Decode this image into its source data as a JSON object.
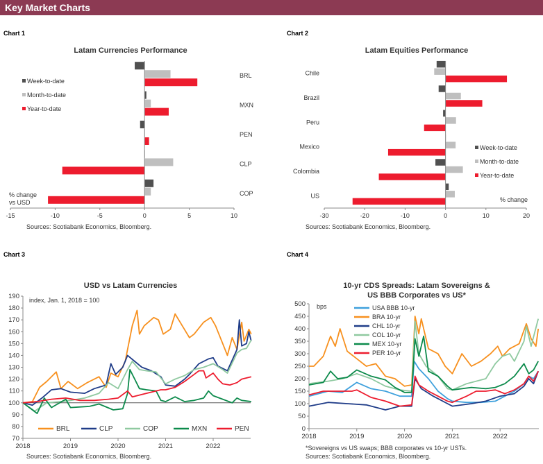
{
  "header": {
    "title": "Key Market Charts",
    "color": "#8c3a53"
  },
  "colors": {
    "wtd": "#505050",
    "mtd": "#bfbfbf",
    "ytd": "#ed1c2e",
    "BRL": "#f7901e",
    "CLP": "#1f3c88",
    "COP": "#8fc9a0",
    "MXN": "#0c8a4b",
    "PEN": "#ed1c2e",
    "USA": "#3ea0dc"
  },
  "chart_data": [
    {
      "label": "Chart 1",
      "type": "bar",
      "orientation": "horizontal",
      "title": "Latam Currencies Performance",
      "categories": [
        "BRL",
        "MXN",
        "PEN",
        "CLP",
        "COP"
      ],
      "series": [
        {
          "name": "Week-to-date",
          "values": [
            -1.1,
            0.2,
            -0.5,
            0,
            1.0
          ]
        },
        {
          "name": "Month-to-date",
          "values": [
            2.9,
            0.7,
            0.05,
            3.2,
            0.7
          ]
        },
        {
          "name": "Year-to-date",
          "values": [
            5.9,
            2.7,
            0.5,
            -9.2,
            -10.8
          ]
        }
      ],
      "xlim": [
        -15,
        10
      ],
      "xticks": [
        "-15",
        "-10",
        "-5",
        "0",
        "5",
        "10"
      ],
      "xlabel": "% change vs USD",
      "legend": "left",
      "source": "Sources: Scotiabank Economics, Bloomberg."
    },
    {
      "label": "Chart 2",
      "type": "bar",
      "orientation": "horizontal",
      "title": "Latam Equities Performance",
      "categories": [
        "Chile",
        "Brazil",
        "Peru",
        "Mexico",
        "Colombia",
        "US"
      ],
      "series": [
        {
          "name": "Week-to-date",
          "values": [
            -2.2,
            -1.7,
            -0.6,
            0,
            -2.5,
            0.8
          ]
        },
        {
          "name": "Month-to-date",
          "values": [
            -2.8,
            3.8,
            2.6,
            2.5,
            4.3,
            2.3
          ]
        },
        {
          "name": "Year-to-date",
          "values": [
            15.2,
            9.1,
            -5.3,
            -14.2,
            -16.5,
            -23.0
          ]
        }
      ],
      "xlim": [
        -30,
        20
      ],
      "xticks": [
        "-30",
        "-20",
        "-10",
        "0",
        "10",
        "20"
      ],
      "xlabel": "% change",
      "legend": "right",
      "source": "Sources: Scotiabank Economics, Bloomberg."
    },
    {
      "label": "Chart 3",
      "type": "line",
      "title": "USD vs Latam Currencies",
      "ylabel": "index, Jan. 1, 2018 = 100",
      "ylim": [
        70,
        190
      ],
      "yticks": [
        "70",
        "80",
        "90",
        "100",
        "110",
        "120",
        "130",
        "140",
        "150",
        "160",
        "170",
        "180",
        "190"
      ],
      "xlim": [
        2018,
        2022.8
      ],
      "xticks": [
        "2018",
        "2019",
        "2020",
        "2021",
        "2022"
      ],
      "reference_line": 100,
      "series": [
        {
          "name": "BRL",
          "color": "BRL",
          "x": [
            2018,
            2018.2,
            2018.35,
            2018.5,
            2018.7,
            2018.8,
            2018.95,
            2019.15,
            2019.35,
            2019.6,
            2019.75,
            2019.85,
            2020,
            2020.15,
            2020.3,
            2020.4,
            2020.45,
            2020.55,
            2020.75,
            2020.85,
            2020.95,
            2021.1,
            2021.2,
            2021.35,
            2021.5,
            2021.6,
            2021.8,
            2021.95,
            2022.05,
            2022.2,
            2022.3,
            2022.4,
            2022.5,
            2022.6,
            2022.65,
            2022.75,
            2022.8
          ],
          "y": [
            100,
            101,
            113,
            118,
            126,
            112,
            118,
            112,
            117,
            122,
            113,
            125,
            122,
            135,
            165,
            178,
            158,
            165,
            172,
            170,
            158,
            162,
            175,
            165,
            155,
            158,
            168,
            172,
            165,
            150,
            140,
            155,
            145,
            168,
            152,
            162,
            158
          ]
        },
        {
          "name": "CLP",
          "color": "CLP",
          "x": [
            2018,
            2018.2,
            2018.4,
            2018.6,
            2018.8,
            2019,
            2019.3,
            2019.5,
            2019.75,
            2019.85,
            2019.95,
            2020.1,
            2020.2,
            2020.35,
            2020.5,
            2020.7,
            2020.9,
            2021,
            2021.2,
            2021.4,
            2021.5,
            2021.7,
            2021.9,
            2022,
            2022.1,
            2022.3,
            2022.5,
            2022.55,
            2022.6,
            2022.7,
            2022.75,
            2022.8
          ],
          "y": [
            100,
            98,
            104,
            111,
            112,
            109,
            108,
            112,
            115,
            133,
            124,
            130,
            140,
            135,
            130,
            127,
            122,
            115,
            114,
            120,
            124,
            133,
            137,
            138,
            131,
            127,
            145,
            170,
            148,
            150,
            160,
            152
          ]
        },
        {
          "name": "COP",
          "color": "COP",
          "x": [
            2018,
            2018.25,
            2018.5,
            2018.8,
            2019,
            2019.3,
            2019.6,
            2019.8,
            2020,
            2020.2,
            2020.3,
            2020.45,
            2020.6,
            2020.8,
            2021,
            2021.2,
            2021.4,
            2021.6,
            2021.8,
            2022,
            2022.2,
            2022.3,
            2022.5,
            2022.6,
            2022.7,
            2022.8
          ],
          "y": [
            100,
            93,
            100,
            101,
            102,
            104,
            108,
            117,
            112,
            128,
            135,
            128,
            127,
            126,
            116,
            120,
            123,
            128,
            130,
            133,
            128,
            125,
            142,
            145,
            146,
            153
          ]
        },
        {
          "name": "MXN",
          "color": "MXN",
          "x": [
            2018,
            2018.2,
            2018.3,
            2018.45,
            2018.6,
            2018.9,
            2019,
            2019.4,
            2019.6,
            2019.9,
            2020.1,
            2020.2,
            2020.25,
            2020.35,
            2020.45,
            2020.6,
            2020.8,
            2020.9,
            2021,
            2021.2,
            2021.4,
            2021.6,
            2021.8,
            2021.9,
            2022,
            2022.2,
            2022.4,
            2022.5,
            2022.6,
            2022.8
          ],
          "y": [
            100,
            94,
            91,
            104,
            96,
            103,
            96,
            97,
            99,
            94,
            95,
            108,
            128,
            120,
            112,
            111,
            110,
            102,
            101,
            105,
            101,
            102,
            104,
            110,
            106,
            103,
            100,
            104,
            102,
            101
          ]
        },
        {
          "name": "PEN",
          "color": "PEN",
          "x": [
            2018,
            2018.3,
            2018.6,
            2018.9,
            2019.2,
            2019.5,
            2019.8,
            2020,
            2020.2,
            2020.3,
            2020.5,
            2020.7,
            2020.9,
            2021,
            2021.2,
            2021.4,
            2021.6,
            2021.7,
            2021.8,
            2021.85,
            2022,
            2022.1,
            2022.2,
            2022.35,
            2022.5,
            2022.6,
            2022.8
          ],
          "y": [
            100,
            101,
            103,
            104,
            102,
            102,
            103,
            104,
            110,
            105,
            107,
            109,
            111,
            111,
            113,
            118,
            124,
            127,
            127,
            121,
            125,
            120,
            116,
            115,
            117,
            120,
            122
          ]
        }
      ],
      "legend": "bottom",
      "source": "Sources: Scotiabank Economics, Bloomberg."
    },
    {
      "label": "Chart 4",
      "type": "line",
      "title": "10-yr CDS Spreads: Latam Sovereigns &",
      "title2": "US BBB Corporates vs US*",
      "ylabel": "bps",
      "ylim": [
        0,
        500
      ],
      "yticks": [
        "0",
        "50",
        "100",
        "150",
        "200",
        "250",
        "300",
        "350",
        "400",
        "450",
        "500"
      ],
      "xlim": [
        2018,
        2022.8
      ],
      "xticks": [
        "2018",
        "2019",
        "2020",
        "2021",
        "2022"
      ],
      "series": [
        {
          "name": "USA BBB 10-yr",
          "color": "USA",
          "x": [
            2018,
            2018.4,
            2018.7,
            2019,
            2019.3,
            2019.6,
            2019.9,
            2020.15,
            2020.2,
            2020.3,
            2020.5,
            2020.7,
            2020.9,
            2021,
            2021.3,
            2021.6,
            2021.9,
            2022.1,
            2022.3,
            2022.5,
            2022.6,
            2022.7,
            2022.8
          ],
          "y": [
            130,
            150,
            145,
            185,
            160,
            150,
            130,
            130,
            270,
            240,
            200,
            150,
            120,
            110,
            105,
            105,
            110,
            130,
            150,
            180,
            210,
            200,
            230
          ]
        },
        {
          "name": "BRA 10-yr",
          "color": "BRL",
          "x": [
            2018,
            2018.1,
            2018.3,
            2018.45,
            2018.55,
            2018.65,
            2018.8,
            2019,
            2019.2,
            2019.4,
            2019.6,
            2019.8,
            2020,
            2020.15,
            2020.22,
            2020.3,
            2020.35,
            2020.5,
            2020.7,
            2020.85,
            2021,
            2021.2,
            2021.4,
            2021.6,
            2021.8,
            2021.95,
            2022.05,
            2022.2,
            2022.4,
            2022.55,
            2022.65,
            2022.75,
            2022.8
          ],
          "y": [
            250,
            250,
            290,
            370,
            330,
            400,
            310,
            280,
            250,
            260,
            210,
            200,
            170,
            175,
            450,
            380,
            440,
            320,
            300,
            250,
            220,
            300,
            250,
            270,
            300,
            330,
            290,
            320,
            340,
            420,
            360,
            330,
            400
          ]
        },
        {
          "name": "CHL 10-yr",
          "color": "CLP",
          "x": [
            2018,
            2018.4,
            2018.8,
            2019.2,
            2019.6,
            2019.9,
            2020.15,
            2020.22,
            2020.35,
            2020.6,
            2020.9,
            2021,
            2021.4,
            2021.7,
            2022,
            2022.3,
            2022.5,
            2022.6,
            2022.7,
            2022.8
          ],
          "y": [
            90,
            105,
            100,
            95,
            75,
            90,
            90,
            200,
            160,
            130,
            100,
            90,
            100,
            110,
            130,
            140,
            170,
            200,
            180,
            230
          ]
        },
        {
          "name": "COL 10-yr",
          "color": "COP",
          "x": [
            2018,
            2018.4,
            2018.7,
            2019,
            2019.3,
            2019.6,
            2019.9,
            2020.15,
            2020.22,
            2020.3,
            2020.45,
            2020.7,
            2020.9,
            2021,
            2021.3,
            2021.5,
            2021.7,
            2021.9,
            2022.05,
            2022.2,
            2022.3,
            2022.5,
            2022.55,
            2022.65,
            2022.8
          ],
          "y": [
            180,
            190,
            200,
            220,
            200,
            170,
            155,
            150,
            430,
            300,
            250,
            210,
            160,
            155,
            180,
            190,
            200,
            260,
            290,
            300,
            270,
            350,
            410,
            330,
            440
          ]
        },
        {
          "name": "MEX 10-yr",
          "color": "MXN",
          "x": [
            2018,
            2018.3,
            2018.45,
            2018.6,
            2018.8,
            2019,
            2019.3,
            2019.6,
            2019.8,
            2020,
            2020.15,
            2020.22,
            2020.3,
            2020.4,
            2020.5,
            2020.7,
            2020.9,
            2021,
            2021.4,
            2021.7,
            2021.9,
            2022.1,
            2022.3,
            2022.5,
            2022.6,
            2022.7,
            2022.8
          ],
          "y": [
            175,
            185,
            230,
            200,
            205,
            235,
            210,
            195,
            165,
            145,
            145,
            360,
            290,
            370,
            230,
            210,
            170,
            155,
            165,
            160,
            165,
            180,
            210,
            260,
            220,
            235,
            270
          ]
        },
        {
          "name": "PER 10-yr",
          "color": "PEN",
          "x": [
            2018,
            2018.3,
            2018.6,
            2018.9,
            2019,
            2019.3,
            2019.6,
            2019.9,
            2020.15,
            2020.22,
            2020.3,
            2020.5,
            2020.7,
            2020.9,
            2021,
            2021.3,
            2021.5,
            2021.7,
            2021.9,
            2022.1,
            2022.3,
            2022.5,
            2022.6,
            2022.7,
            2022.8
          ],
          "y": [
            135,
            150,
            150,
            150,
            155,
            125,
            110,
            90,
            95,
            210,
            175,
            150,
            130,
            110,
            105,
            130,
            150,
            150,
            155,
            140,
            155,
            180,
            210,
            190,
            230
          ]
        }
      ],
      "legend": "top-left",
      "footnote": "*Sovereigns vs US swaps; BBB corporates vs 10-yr USTs.",
      "source": "Sources: Scotiabank Economics, Bloomberg."
    }
  ]
}
